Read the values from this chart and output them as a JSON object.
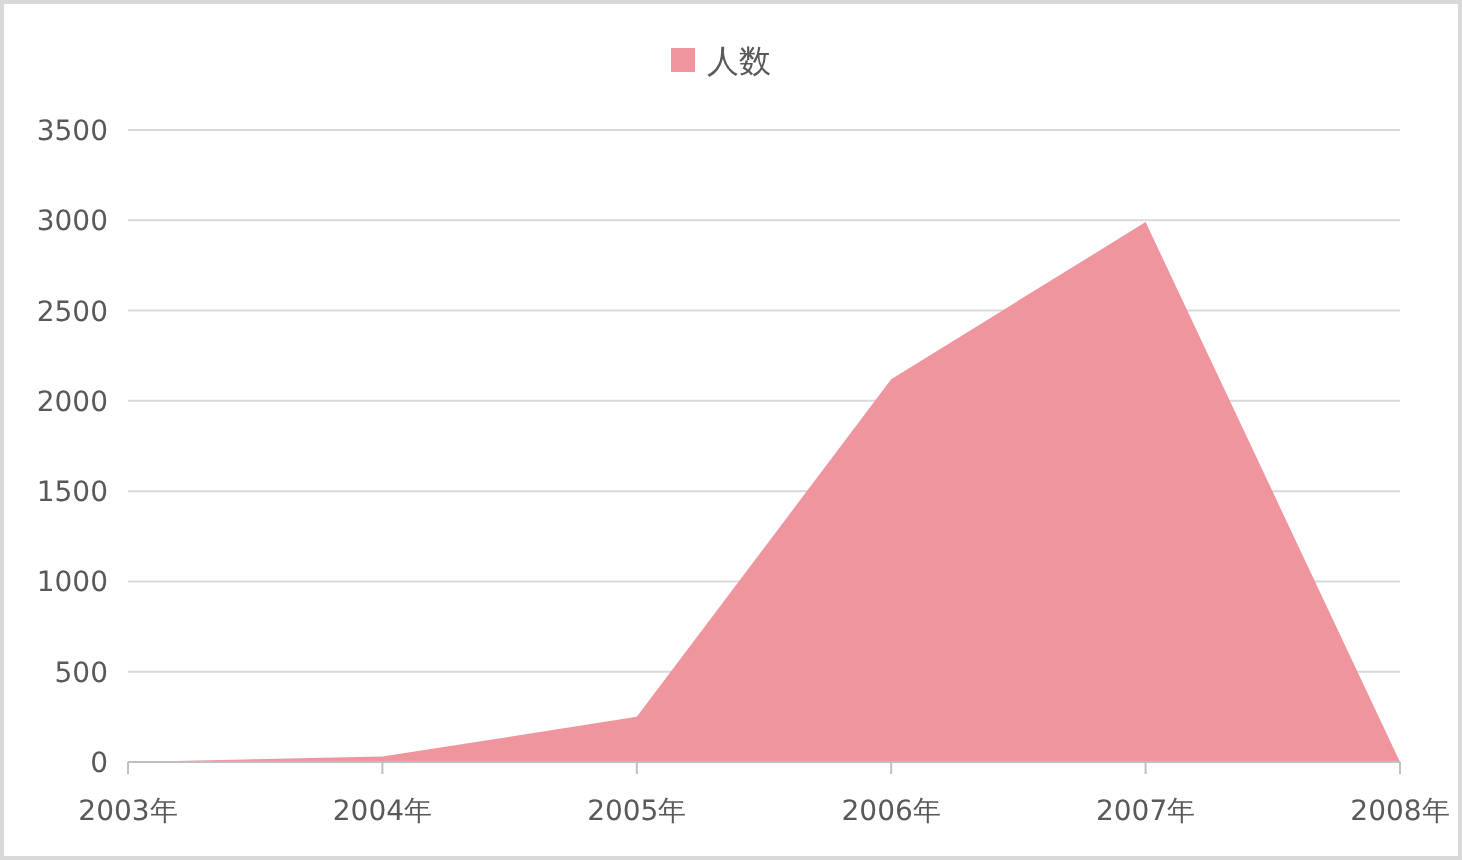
{
  "chart_data": {
    "type": "area",
    "categories": [
      "2003年",
      "2004年",
      "2005年",
      "2006年",
      "2007年",
      "2008年"
    ],
    "series": [
      {
        "name": "人数",
        "color": "#ee959e",
        "values": [
          0,
          30,
          250,
          2120,
          2990,
          0
        ]
      }
    ],
    "ylim": [
      0,
      3500
    ],
    "yticks": [
      0,
      500,
      1000,
      1500,
      2000,
      2500,
      3000,
      3500
    ],
    "grid": "y",
    "legend": "top"
  }
}
